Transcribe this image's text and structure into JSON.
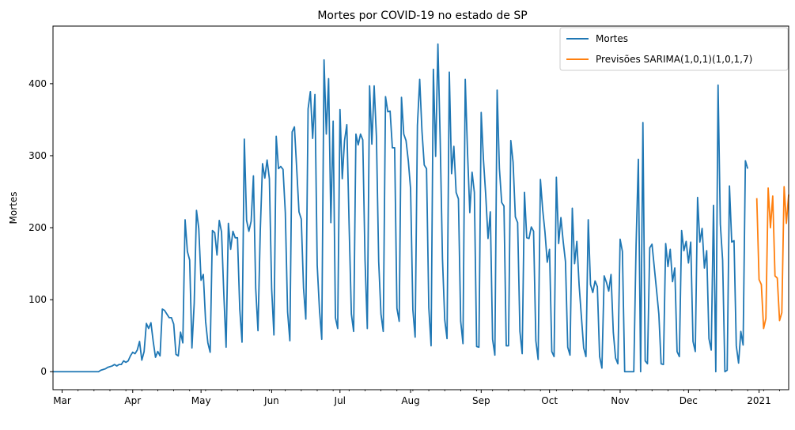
{
  "chart_data": {
    "type": "line",
    "title": "Mortes por COVID-19 no estado de SP",
    "xlabel": "",
    "ylabel": "Mortes",
    "ylim": [
      -25,
      480
    ],
    "y_ticks": [
      0,
      100,
      200,
      300,
      400
    ],
    "x_range": [
      "2020-02-26",
      "2021-01-14"
    ],
    "x_ticks": [
      {
        "date": "2020-03-01",
        "label": "Mar"
      },
      {
        "date": "2020-04-01",
        "label": "Apr"
      },
      {
        "date": "2020-05-01",
        "label": "May"
      },
      {
        "date": "2020-06-01",
        "label": "Jun"
      },
      {
        "date": "2020-07-01",
        "label": "Jul"
      },
      {
        "date": "2020-08-01",
        "label": "Aug"
      },
      {
        "date": "2020-09-01",
        "label": "Sep"
      },
      {
        "date": "2020-10-01",
        "label": "Oct"
      },
      {
        "date": "2020-11-01",
        "label": "Nov"
      },
      {
        "date": "2020-12-01",
        "label": "Dec"
      },
      {
        "date": "2021-01-01",
        "label": "2021"
      }
    ],
    "grid": false,
    "legend": "top-right",
    "series": [
      {
        "name": "Mortes",
        "color": "#1f77b4",
        "start_date": "2020-02-26",
        "values": [
          0,
          0,
          0,
          0,
          0,
          0,
          0,
          0,
          0,
          0,
          0,
          0,
          0,
          0,
          0,
          0,
          0,
          0,
          0,
          0,
          0,
          2,
          3,
          4,
          6,
          7,
          8,
          10,
          8,
          10,
          10,
          15,
          13,
          15,
          22,
          27,
          25,
          30,
          42,
          16,
          28,
          67,
          60,
          68,
          42,
          20,
          28,
          22,
          87,
          85,
          80,
          75,
          75,
          66,
          24,
          22,
          55,
          40,
          211,
          167,
          155,
          33,
          95,
          224,
          199,
          127,
          135,
          70,
          40,
          27,
          196,
          193,
          162,
          210,
          194,
          108,
          34,
          206,
          170,
          195,
          186,
          186,
          87,
          41,
          323,
          210,
          195,
          209,
          272,
          116,
          57,
          195,
          289,
          269,
          294,
          268,
          115,
          51,
          327,
          282,
          285,
          281,
          221,
          83,
          43,
          333,
          340,
          282,
          222,
          212,
          116,
          73,
          365,
          389,
          324,
          385,
          148,
          86,
          45,
          433,
          330,
          407,
          207,
          348,
          75,
          60,
          364,
          268,
          321,
          343,
          205,
          80,
          56,
          330,
          315,
          330,
          322,
          155,
          60,
          397,
          316,
          397,
          327,
          153,
          80,
          56,
          382,
          361,
          362,
          311,
          311,
          88,
          70,
          381,
          330,
          321,
          293,
          254,
          86,
          48,
          342,
          406,
          334,
          287,
          282,
          89,
          36,
          420,
          299,
          455,
          322,
          157,
          72,
          46,
          416,
          275,
          313,
          249,
          240,
          70,
          39,
          406,
          305,
          221,
          277,
          249,
          35,
          34,
          360,
          294,
          245,
          185,
          222,
          45,
          23,
          391,
          282,
          235,
          230,
          36,
          36,
          321,
          291,
          215,
          207,
          56,
          25,
          249,
          186,
          185,
          201,
          195,
          43,
          17,
          267,
          225,
          194,
          152,
          170,
          28,
          21,
          270,
          178,
          214,
          181,
          153,
          34,
          23,
          227,
          150,
          181,
          120,
          76,
          33,
          21,
          211,
          121,
          110,
          126,
          118,
          21,
          5,
          133,
          124,
          112,
          135,
          55,
          19,
          11,
          184,
          167,
          0,
          0,
          0,
          0,
          0,
          175,
          295,
          0,
          346,
          15,
          11,
          172,
          177,
          145,
          113,
          80,
          11,
          10,
          178,
          146,
          170,
          125,
          144,
          28,
          21,
          196,
          168,
          181,
          151,
          180,
          42,
          28,
          242,
          180,
          199,
          144,
          168,
          46,
          30,
          231,
          0,
          398,
          205,
          155,
          0,
          2,
          258,
          180,
          182,
          36,
          12,
          56,
          37,
          293,
          282
        ]
      },
      {
        "name": "Previsões SARIMA(1,0,1)(1,0,1,7)",
        "color": "#ff7f0e",
        "start_date": "2020-12-31",
        "values": [
          241,
          128,
          121,
          60,
          74,
          255,
          200,
          244,
          133,
          130,
          71,
          82,
          257,
          206,
          246
        ]
      }
    ]
  }
}
